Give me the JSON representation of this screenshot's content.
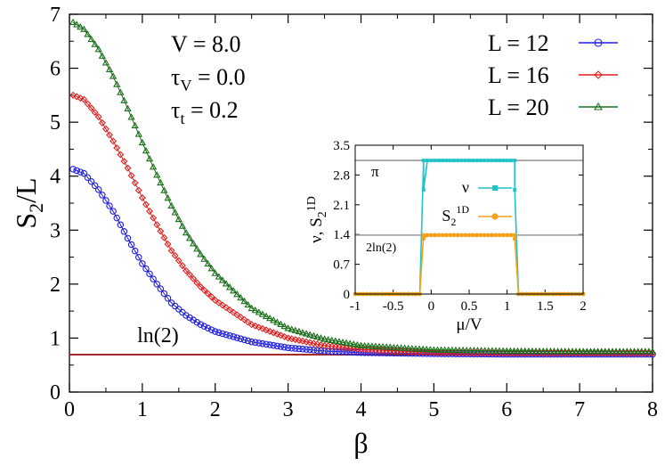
{
  "chart_data": [
    {
      "type": "scatter",
      "xlabel": "β",
      "ylabel": {
        "main": "S",
        "sub": "2",
        "tail": "/L"
      },
      "xlim": [
        0,
        8
      ],
      "ylim": [
        0,
        7
      ],
      "xticks": [
        0,
        1,
        2,
        3,
        4,
        5,
        6,
        7,
        8
      ],
      "yticks": [
        0,
        1,
        2,
        3,
        4,
        5,
        6,
        7
      ],
      "grid": false,
      "legend_position": "top-right",
      "params": [
        {
          "sym": "V",
          "sub": "",
          "value": "= 8.0"
        },
        {
          "sym": "τ",
          "sub": "V",
          "value": "= 0.0"
        },
        {
          "sym": "τ",
          "sub": "t",
          "value": "= 0.2"
        }
      ],
      "reference_line": {
        "label": "ln(2)",
        "y": 0.693,
        "color": "#a52a2a"
      },
      "series": [
        {
          "name": "L = 12",
          "marker": "circle",
          "color": "#1f1fe0",
          "y0": 4.15,
          "yinf": 0.693,
          "half_life": 0.55,
          "points": [
            [
              0.05,
              4.13
            ],
            [
              0.2,
              4.05
            ],
            [
              0.4,
              3.75
            ],
            [
              0.6,
              3.35
            ],
            [
              0.8,
              2.85
            ],
            [
              1.0,
              2.38
            ],
            [
              1.2,
              2.0
            ],
            [
              1.4,
              1.65
            ],
            [
              1.6,
              1.42
            ],
            [
              1.8,
              1.25
            ],
            [
              2.0,
              1.12
            ],
            [
              2.5,
              0.93
            ],
            [
              3.0,
              0.82
            ],
            [
              3.5,
              0.76
            ],
            [
              4.0,
              0.73
            ],
            [
              5.0,
              0.71
            ],
            [
              6.0,
              0.7
            ],
            [
              7.0,
              0.7
            ],
            [
              8.0,
              0.7
            ]
          ]
        },
        {
          "name": "L = 16",
          "marker": "diamond",
          "color": "#e01f1f",
          "y0": 5.5,
          "yinf": 0.71,
          "half_life": 0.7,
          "points": [
            [
              0.05,
              5.5
            ],
            [
              0.2,
              5.42
            ],
            [
              0.4,
              5.1
            ],
            [
              0.6,
              4.65
            ],
            [
              0.8,
              4.15
            ],
            [
              1.0,
              3.6
            ],
            [
              1.2,
              3.1
            ],
            [
              1.4,
              2.62
            ],
            [
              1.6,
              2.25
            ],
            [
              1.8,
              1.95
            ],
            [
              2.0,
              1.7
            ],
            [
              2.5,
              1.25
            ],
            [
              3.0,
              1.0
            ],
            [
              3.5,
              0.86
            ],
            [
              4.0,
              0.79
            ],
            [
              5.0,
              0.73
            ],
            [
              6.0,
              0.72
            ],
            [
              7.0,
              0.72
            ],
            [
              8.0,
              0.72
            ]
          ]
        },
        {
          "name": "L = 20",
          "marker": "triangle",
          "color": "#1a6e1a",
          "y0": 6.85,
          "yinf": 0.74,
          "half_life": 0.85,
          "points": [
            [
              0.05,
              6.85
            ],
            [
              0.2,
              6.72
            ],
            [
              0.4,
              6.35
            ],
            [
              0.6,
              5.85
            ],
            [
              0.8,
              5.25
            ],
            [
              1.0,
              4.62
            ],
            [
              1.2,
              4.02
            ],
            [
              1.4,
              3.45
            ],
            [
              1.6,
              2.95
            ],
            [
              1.8,
              2.55
            ],
            [
              2.0,
              2.2
            ],
            [
              2.5,
              1.55
            ],
            [
              3.0,
              1.18
            ],
            [
              3.5,
              0.98
            ],
            [
              4.0,
              0.86
            ],
            [
              5.0,
              0.78
            ],
            [
              6.0,
              0.76
            ],
            [
              7.0,
              0.75
            ],
            [
              8.0,
              0.75
            ]
          ]
        }
      ]
    },
    {
      "type": "line",
      "inset": true,
      "xlabel": "μ/V",
      "ylabel": {
        "part1": "ν, S",
        "sub": "2",
        "sup": "1D"
      },
      "xlim": [
        -1,
        2
      ],
      "ylim": [
        0,
        3.5
      ],
      "xticks": [
        "-1",
        "-0.5",
        "0",
        "0.5",
        "1",
        "1.5",
        "2"
      ],
      "xtick_values": [
        -1,
        -0.5,
        0,
        0.5,
        1,
        1.5,
        2
      ],
      "yticks": [
        "0",
        "0.7",
        "1.4",
        "2.1",
        "2.8",
        "3.5"
      ],
      "ytick_values": [
        0,
        0.7,
        1.4,
        2.1,
        2.8,
        3.5
      ],
      "hlines": [
        {
          "y": 3.1416,
          "label": "π"
        },
        {
          "y": 1.386,
          "label": "2ln(2)"
        }
      ],
      "series": [
        {
          "name": "ν",
          "color": "#20c4c8",
          "marker": "square",
          "plateau": 3.1416,
          "edges": [
            -0.15,
            1.15
          ],
          "shoulders": [
            [
              -0.1,
              2.45
            ],
            [
              1.1,
              2.45
            ]
          ]
        },
        {
          "name": "S2^1D",
          "label_main": "S",
          "label_sub": "2",
          "label_sup": "1D",
          "color": "#f4a11c",
          "marker": "circle",
          "plateau": 1.386,
          "edges": [
            -0.15,
            1.15
          ],
          "shoulders": [
            [
              -0.1,
              1.3
            ],
            [
              1.1,
              1.3
            ]
          ]
        }
      ]
    }
  ]
}
